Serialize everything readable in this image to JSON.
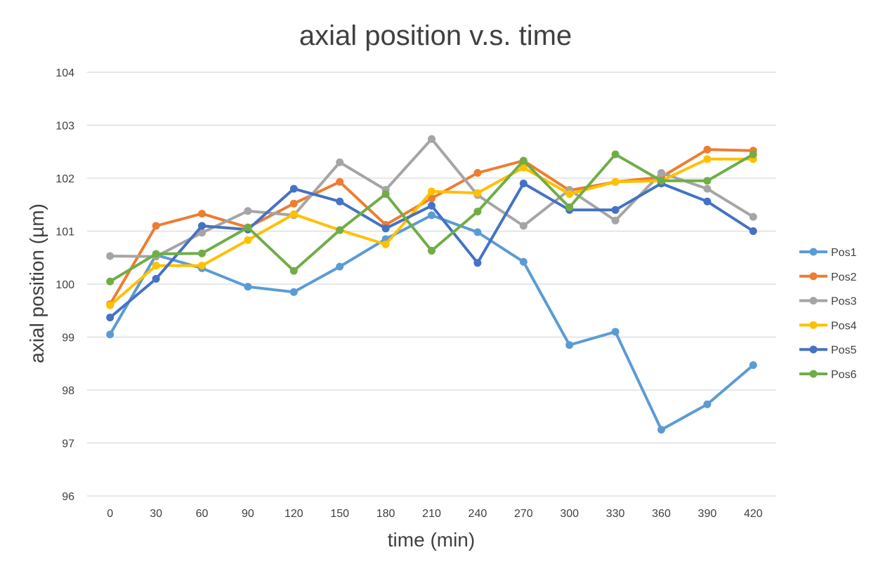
{
  "chart_data": {
    "type": "line",
    "title": "axial position v.s. time",
    "xlabel": "time (min)",
    "ylabel": "axial position (µm)",
    "ylim": [
      96,
      104
    ],
    "y_ticks": [
      "96",
      "97",
      "98",
      "99",
      "100",
      "101",
      "102",
      "103",
      "104"
    ],
    "grid": true,
    "legend_position": "right",
    "categories": [
      "0",
      "30",
      "60",
      "90",
      "120",
      "150",
      "180",
      "210",
      "240",
      "270",
      "300",
      "330",
      "360",
      "390",
      "420"
    ],
    "series": [
      {
        "name": "Pos1",
        "color": "#5b9bd5",
        "values": [
          99.05,
          100.55,
          100.3,
          99.95,
          99.85,
          100.33,
          100.85,
          101.3,
          100.98,
          100.42,
          98.85,
          99.1,
          97.25,
          97.73,
          98.47
        ]
      },
      {
        "name": "Pos2",
        "color": "#ed7d31",
        "values": [
          99.62,
          101.1,
          101.33,
          101.07,
          101.52,
          101.93,
          101.12,
          101.62,
          102.1,
          102.33,
          101.77,
          101.93,
          102.02,
          102.54,
          102.52
        ]
      },
      {
        "name": "Pos3",
        "color": "#a5a5a5",
        "values": [
          100.53,
          100.52,
          100.97,
          101.38,
          101.3,
          102.3,
          101.78,
          102.74,
          101.68,
          101.1,
          101.78,
          101.2,
          102.1,
          101.8,
          101.27
        ]
      },
      {
        "name": "Pos4",
        "color": "#ffc000",
        "values": [
          99.6,
          100.35,
          100.35,
          100.83,
          101.32,
          101.02,
          100.75,
          101.75,
          101.72,
          102.2,
          101.7,
          101.93,
          101.95,
          102.36,
          102.36
        ]
      },
      {
        "name": "Pos5",
        "color": "#4472c4",
        "values": [
          99.37,
          100.1,
          101.1,
          101.03,
          101.8,
          101.56,
          101.05,
          101.48,
          100.4,
          101.9,
          101.4,
          101.4,
          101.9,
          101.56,
          101.0
        ]
      },
      {
        "name": "Pos6",
        "color": "#70ad47",
        "values": [
          100.05,
          100.57,
          100.58,
          101.07,
          100.25,
          101.02,
          101.7,
          100.63,
          101.37,
          102.33,
          101.45,
          102.45,
          101.95,
          101.95,
          102.45
        ]
      }
    ]
  }
}
